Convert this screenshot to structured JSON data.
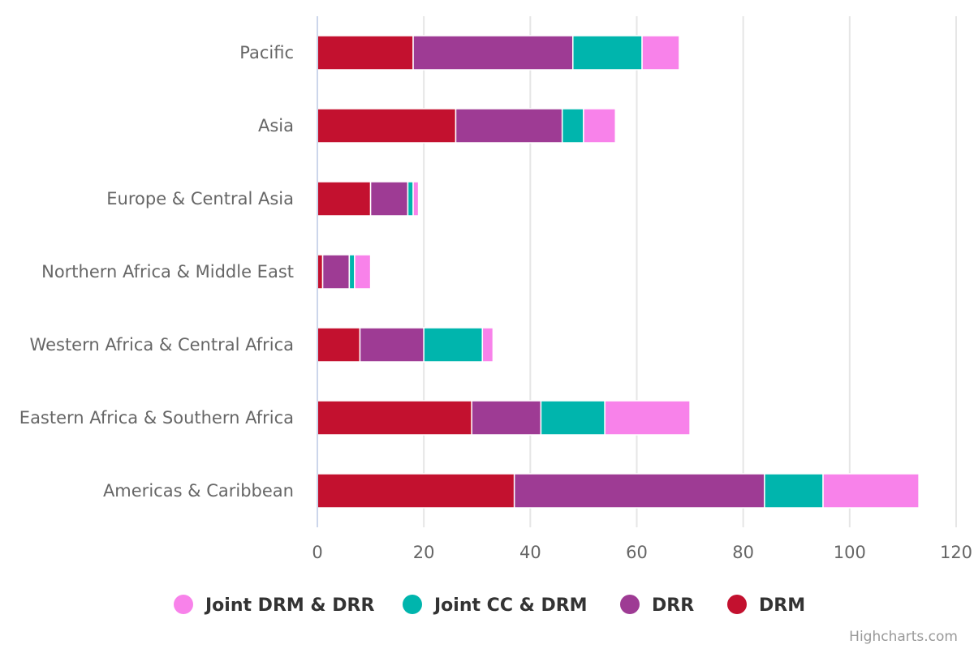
{
  "chart_data": {
    "type": "bar",
    "orientation": "horizontal",
    "stacked": true,
    "categories": [
      "Pacific",
      "Asia",
      "Europe & Central Asia",
      "Northern Africa & Middle East",
      "Western Africa & Central Africa",
      "Eastern Africa & Southern Africa",
      "Americas & Caribbean"
    ],
    "series": [
      {
        "name": "DRM",
        "color": "#c3112f",
        "values": [
          18,
          26,
          10,
          1,
          8,
          29,
          37
        ]
      },
      {
        "name": "DRR",
        "color": "#9e3b94",
        "values": [
          30,
          20,
          7,
          5,
          12,
          13,
          47
        ]
      },
      {
        "name": "Joint CC & DRM",
        "color": "#00b5ad",
        "values": [
          13,
          4,
          1,
          1,
          11,
          12,
          11
        ]
      },
      {
        "name": "Joint DRM & DRR",
        "color": "#f882ea",
        "values": [
          7,
          6,
          1,
          3,
          2,
          16,
          18
        ]
      }
    ],
    "legend_order": [
      "Joint DRM & DRR",
      "Joint CC & DRM",
      "DRR",
      "DRM"
    ],
    "xlim": [
      0,
      120
    ],
    "xticks": [
      0,
      20,
      40,
      60,
      80,
      100,
      120
    ],
    "grid": true,
    "legend_position": "bottom"
  },
  "credits": "Highcharts.com"
}
